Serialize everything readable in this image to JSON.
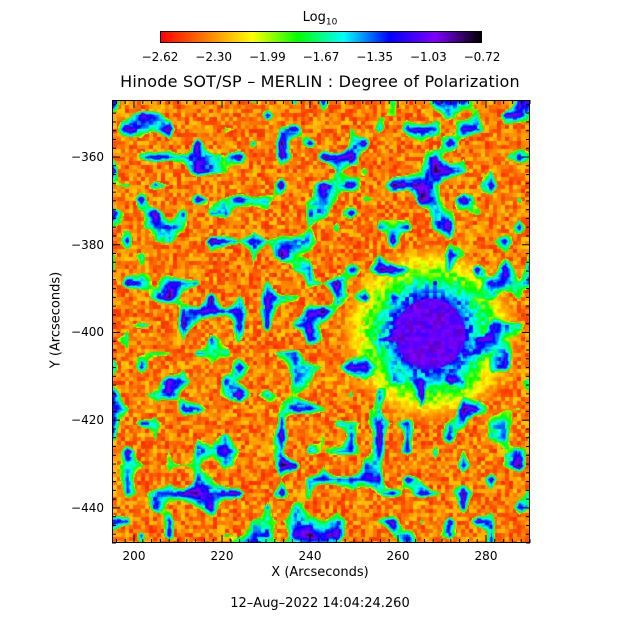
{
  "chart_data": {
    "type": "heatmap",
    "title": "Hinode SOT/SP – MERLIN : Degree of Polarization",
    "xlabel": "X (Arcseconds)",
    "ylabel": "Y (Arcseconds)",
    "x_ticks": [
      200,
      220,
      240,
      260,
      280
    ],
    "y_ticks": [
      -360,
      -380,
      -400,
      -420,
      -440
    ],
    "xlim": [
      195,
      290
    ],
    "ylim": [
      -448,
      -347
    ],
    "colorbar": {
      "label_main": "Log",
      "label_sub": "10",
      "ticks": [
        "−2.62",
        "−2.30",
        "−1.99",
        "−1.67",
        "−1.35",
        "−1.03",
        "−0.72"
      ],
      "range": [
        -2.62,
        -0.72
      ],
      "colormap": [
        "#ff0000",
        "#ff7f00",
        "#ffff00",
        "#00ff00",
        "#00ffff",
        "#0000ff",
        "#8000ff",
        "#000000"
      ]
    },
    "features": [
      {
        "kind": "sunspot",
        "center_x": 267,
        "center_y": -400,
        "umbra_radius_arcsec": 8,
        "penumbra_radius_arcsec": 16
      }
    ]
  },
  "timestamp": "12–Aug–2022 14:04:24.260"
}
